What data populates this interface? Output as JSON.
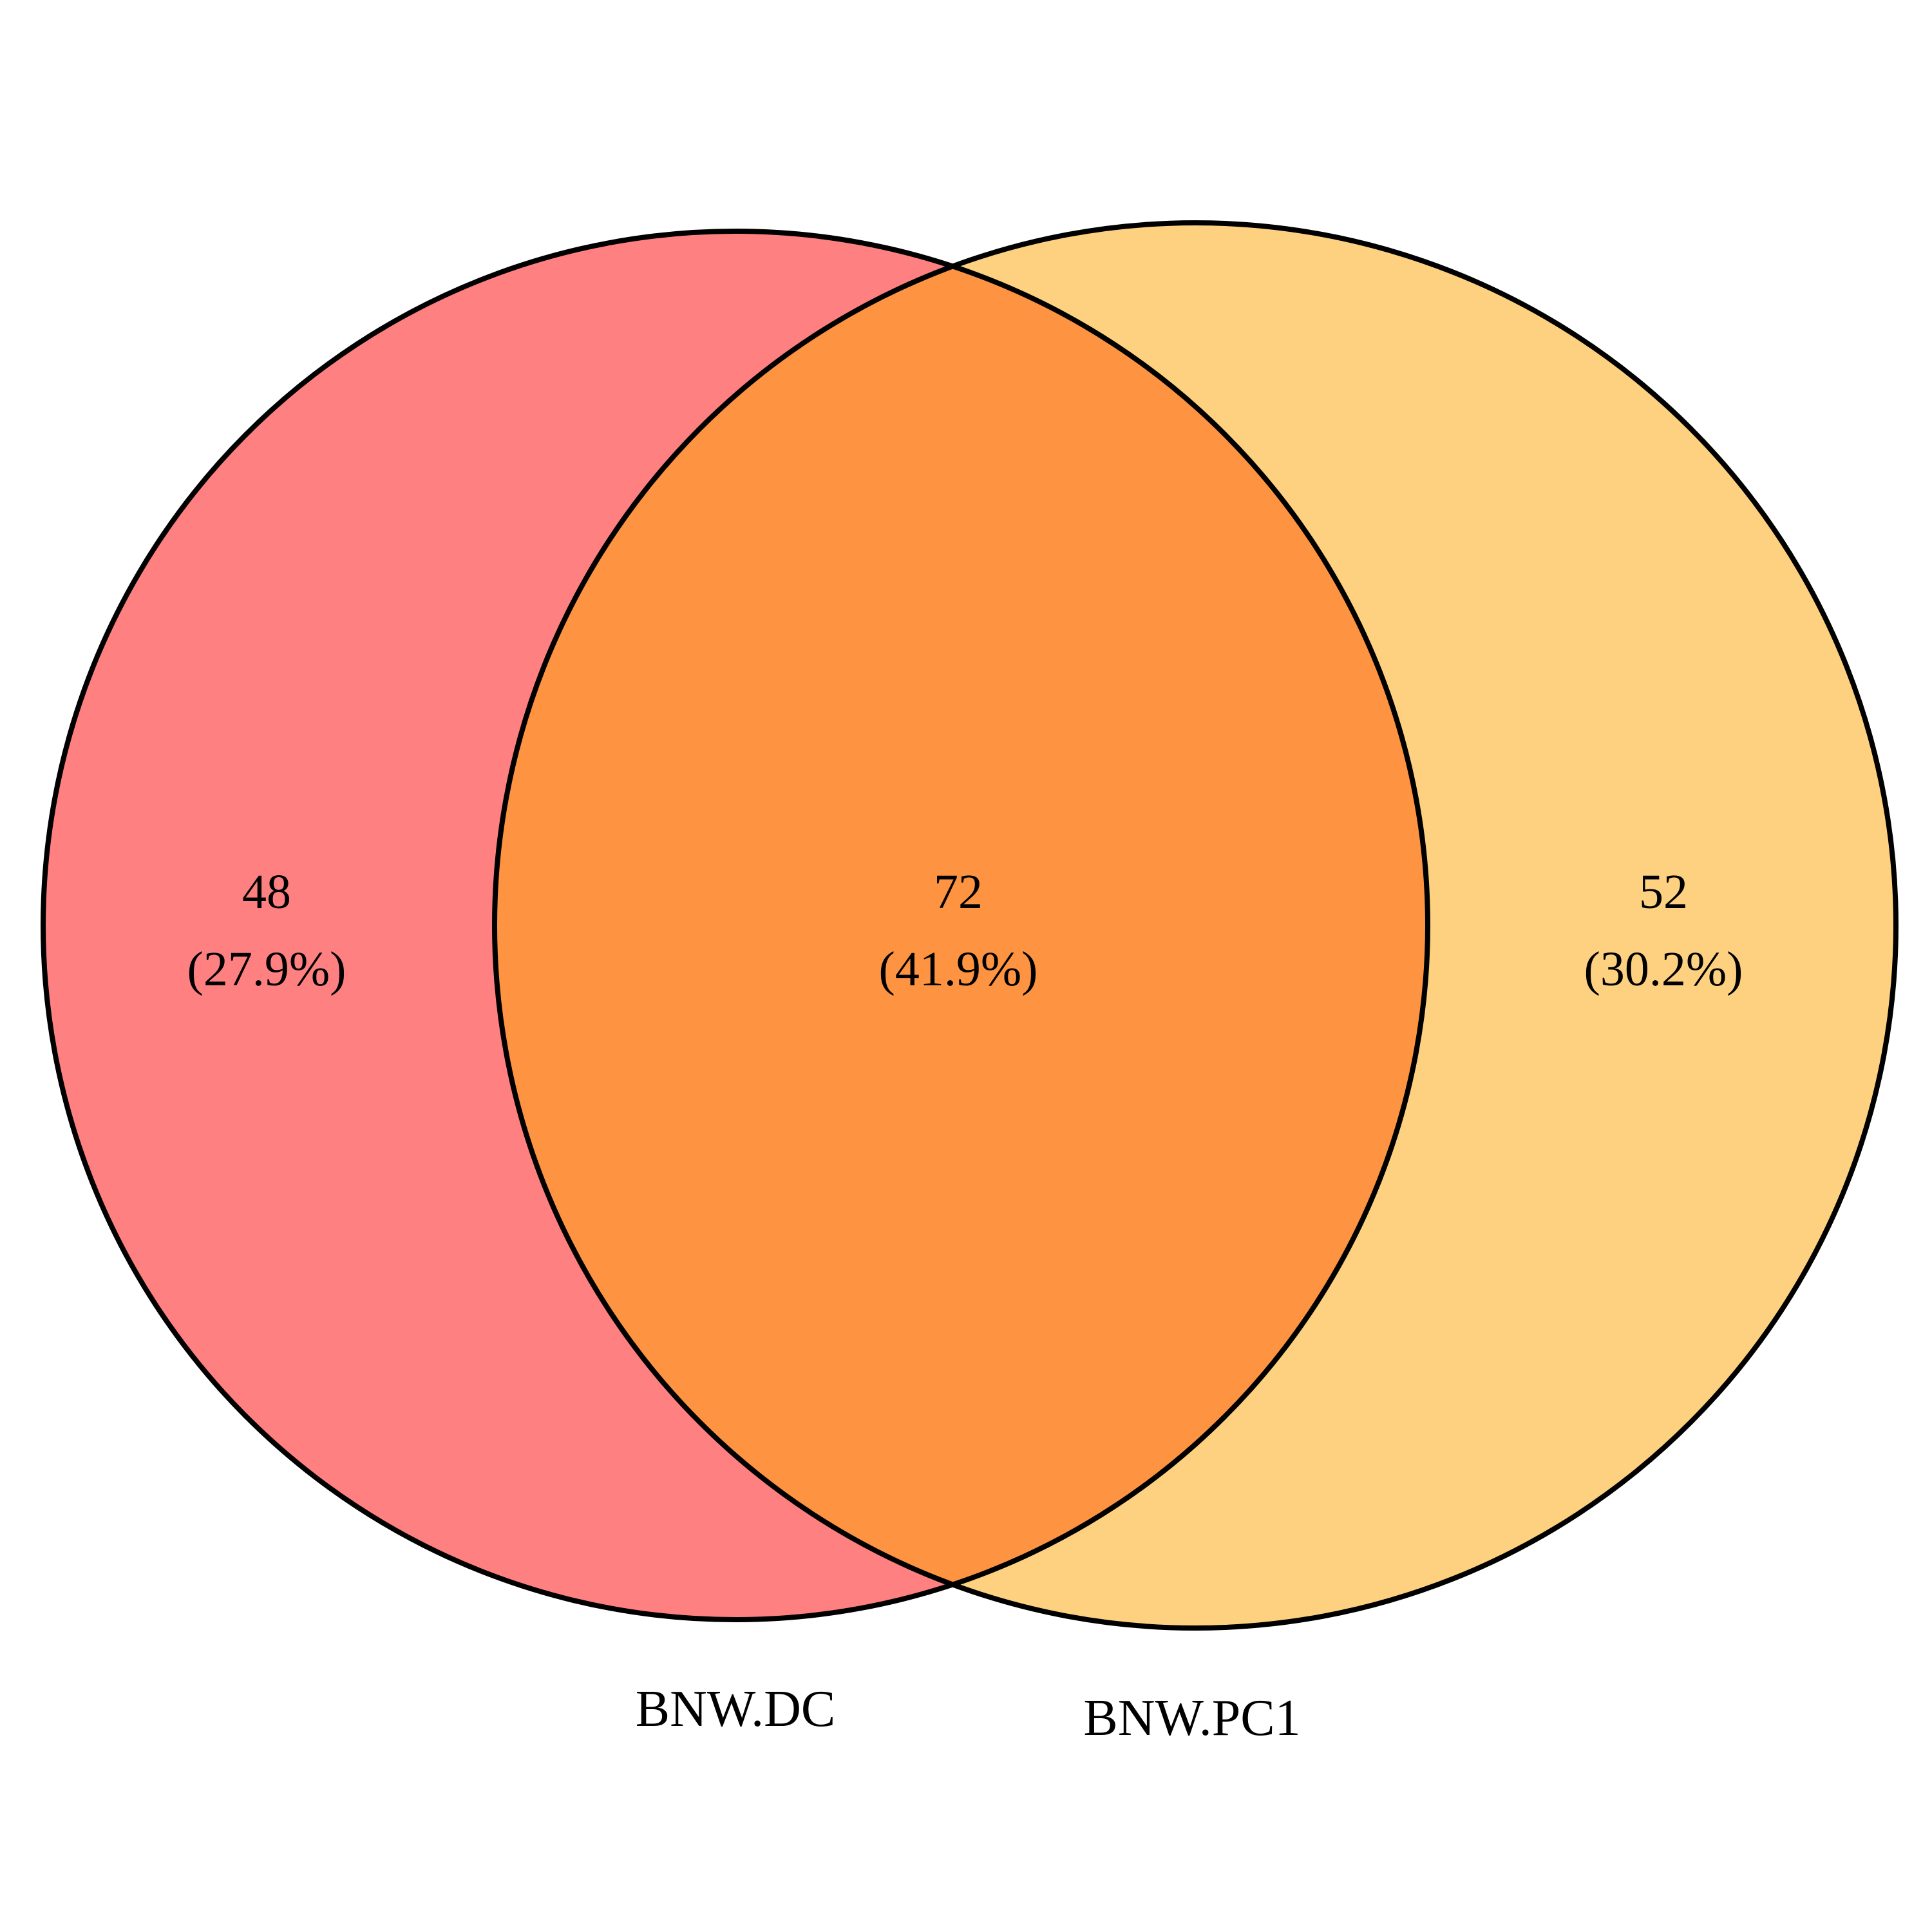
{
  "colors": {
    "set_a_only": "#ff8080",
    "set_b_only": "#fdd17f",
    "intersection": "#fe9342",
    "outline": "#000000",
    "background": "#ffffff"
  },
  "sets": [
    {
      "label": "BNW.DC"
    },
    {
      "label": "BNW.PC1"
    }
  ],
  "regions": {
    "a_only": {
      "count": "48",
      "percent": "(27.9%)"
    },
    "both": {
      "count": "72",
      "percent": "(41.9%)"
    },
    "b_only": {
      "count": "52",
      "percent": "(30.2%)"
    }
  }
}
